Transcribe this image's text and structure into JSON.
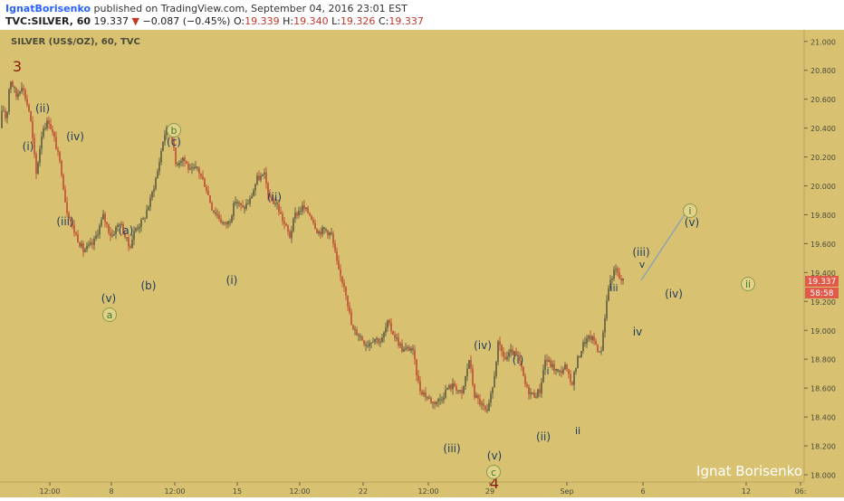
{
  "header": {
    "author": "IgnatBorisenko",
    "published_text": "published on TradingView.com, September 04, 2016 23:01 EST",
    "symbol": "TVC:SILVER, 60",
    "last": "19.337",
    "change_arrow": "▼",
    "change": "−0.087 (−0.45%)",
    "open_label": "O:",
    "open": "19.339",
    "high_label": "H:",
    "high": "19.340",
    "low_label": "L:",
    "low": "19.326",
    "close_label": "C:",
    "close": "19.337"
  },
  "chart_title": "SILVER (US$/OZ), 60, TVC",
  "price_badge": "19.337",
  "countdown_badge": "58:58",
  "watermark": "Ignat Borisenko",
  "colors": {
    "background": "#d8c271",
    "candle": "#4a4a3a",
    "candle_down": "#c0392b",
    "wave_label": "#1f3a5f",
    "wave_major": "#8b1a0e",
    "circle_fill": "#e2d28a",
    "circle_text": "#3d7a2a",
    "arrow": "#8fa3b0",
    "badge": "#e05a4a"
  },
  "chart_data": {
    "type": "candlestick",
    "ylim": [
      17.95,
      21.08
    ],
    "y_ticks": [
      "21.000",
      "20.800",
      "20.600",
      "20.400",
      "20.200",
      "20.000",
      "19.800",
      "19.600",
      "19.400",
      "19.200",
      "19.000",
      "18.800",
      "18.600",
      "18.400",
      "18.200",
      "18.000"
    ],
    "x_ticks": [
      "12:00",
      "8",
      "12:00",
      "15",
      "12:00",
      "22",
      "12:00",
      "29",
      "Sep",
      "6",
      "12",
      "06:"
    ],
    "path_points": [
      [
        0,
        20.4
      ],
      [
        3,
        20.55
      ],
      [
        7,
        20.45
      ],
      [
        11,
        20.75
      ],
      [
        18,
        20.62
      ],
      [
        24,
        20.7
      ],
      [
        33,
        20.5
      ],
      [
        40,
        20.08
      ],
      [
        47,
        20.4
      ],
      [
        54,
        20.45
      ],
      [
        61,
        20.3
      ],
      [
        68,
        20.1
      ],
      [
        73,
        19.85
      ],
      [
        81,
        19.7
      ],
      [
        92,
        19.55
      ],
      [
        103,
        19.6
      ],
      [
        114,
        19.79
      ],
      [
        123,
        19.65
      ],
      [
        132,
        19.75
      ],
      [
        143,
        19.57
      ],
      [
        149,
        19.7
      ],
      [
        158,
        19.76
      ],
      [
        166,
        19.9
      ],
      [
        174,
        20.1
      ],
      [
        181,
        20.35
      ],
      [
        188,
        20.43
      ],
      [
        194,
        20.15
      ],
      [
        202,
        20.2
      ],
      [
        210,
        20.1
      ],
      [
        218,
        20.12
      ],
      [
        227,
        20.0
      ],
      [
        234,
        19.85
      ],
      [
        240,
        19.8
      ],
      [
        247,
        19.73
      ],
      [
        253,
        19.75
      ],
      [
        260,
        19.9
      ],
      [
        268,
        19.84
      ],
      [
        276,
        19.9
      ],
      [
        284,
        20.05
      ],
      [
        292,
        20.07
      ],
      [
        298,
        19.9
      ],
      [
        305,
        19.88
      ],
      [
        313,
        19.75
      ],
      [
        320,
        19.65
      ],
      [
        326,
        19.8
      ],
      [
        334,
        19.85
      ],
      [
        343,
        19.8
      ],
      [
        351,
        19.68
      ],
      [
        359,
        19.7
      ],
      [
        366,
        19.66
      ],
      [
        374,
        19.4
      ],
      [
        381,
        19.3
      ],
      [
        389,
        19.0
      ],
      [
        395,
        18.98
      ],
      [
        405,
        18.9
      ],
      [
        413,
        18.95
      ],
      [
        421,
        18.92
      ],
      [
        428,
        19.05
      ],
      [
        437,
        18.95
      ],
      [
        445,
        18.86
      ],
      [
        455,
        18.88
      ],
      [
        463,
        18.6
      ],
      [
        470,
        18.55
      ],
      [
        478,
        18.5
      ],
      [
        486,
        18.52
      ],
      [
        494,
        18.6
      ],
      [
        502,
        18.62
      ],
      [
        510,
        18.55
      ],
      [
        518,
        18.8
      ],
      [
        524,
        18.55
      ],
      [
        530,
        18.5
      ],
      [
        538,
        18.42
      ],
      [
        544,
        18.6
      ],
      [
        550,
        18.9
      ],
      [
        558,
        18.8
      ],
      [
        565,
        18.85
      ],
      [
        573,
        18.8
      ],
      [
        581,
        18.6
      ],
      [
        589,
        18.55
      ],
      [
        596,
        18.58
      ],
      [
        602,
        18.8
      ],
      [
        610,
        18.75
      ],
      [
        617,
        18.7
      ],
      [
        624,
        18.75
      ],
      [
        631,
        18.62
      ],
      [
        638,
        18.8
      ],
      [
        645,
        18.92
      ],
      [
        652,
        18.95
      ],
      [
        657,
        18.92
      ],
      [
        663,
        18.82
      ],
      [
        668,
        19.1
      ],
      [
        672,
        19.3
      ],
      [
        676,
        19.38
      ],
      [
        680,
        19.42
      ],
      [
        684,
        19.36
      ],
      [
        688,
        19.34
      ]
    ]
  },
  "wave_labels": [
    {
      "id": "w-3-major",
      "text": "3"
    },
    {
      "id": "w-ii-top",
      "text": "(ii)"
    },
    {
      "id": "w-i-top",
      "text": "(i)"
    },
    {
      "id": "w-iv-top",
      "text": "(iv)"
    },
    {
      "id": "w-iii-top",
      "text": "(iii)"
    },
    {
      "id": "w-a-small",
      "text": "(a)"
    },
    {
      "id": "w-b-small",
      "text": "(b)"
    },
    {
      "id": "w-v-left",
      "text": "(v)"
    },
    {
      "id": "w-c-mid",
      "text": "(c)"
    },
    {
      "id": "w-i-mid",
      "text": "(i)"
    },
    {
      "id": "w-ii-mid",
      "text": "(ii)"
    },
    {
      "id": "w-iv-low",
      "text": "(iv)"
    },
    {
      "id": "w-iii-low",
      "text": "(iii)"
    },
    {
      "id": "w-v-low",
      "text": "(v)"
    },
    {
      "id": "w-4-major",
      "text": "4"
    },
    {
      "id": "w-i-rise",
      "text": "(i)"
    },
    {
      "id": "w-ii-rise",
      "text": "(ii)"
    },
    {
      "id": "w-i-small",
      "text": "i"
    },
    {
      "id": "w-ii-small",
      "text": "ii"
    },
    {
      "id": "w-iii-small",
      "text": "iii"
    },
    {
      "id": "w-iv-small",
      "text": "iv"
    },
    {
      "id": "w-iii-proj",
      "text": "(iii)"
    },
    {
      "id": "w-v-proj-small",
      "text": "v"
    },
    {
      "id": "w-iv-proj",
      "text": "(iv)"
    },
    {
      "id": "w-v-proj",
      "text": "(v)"
    }
  ],
  "circle_labels": [
    {
      "id": "c-a",
      "text": "a"
    },
    {
      "id": "c-b",
      "text": "b"
    },
    {
      "id": "c-c",
      "text": "c"
    },
    {
      "id": "c-i-proj",
      "text": "i"
    },
    {
      "id": "c-ii-proj",
      "text": "ii"
    }
  ]
}
